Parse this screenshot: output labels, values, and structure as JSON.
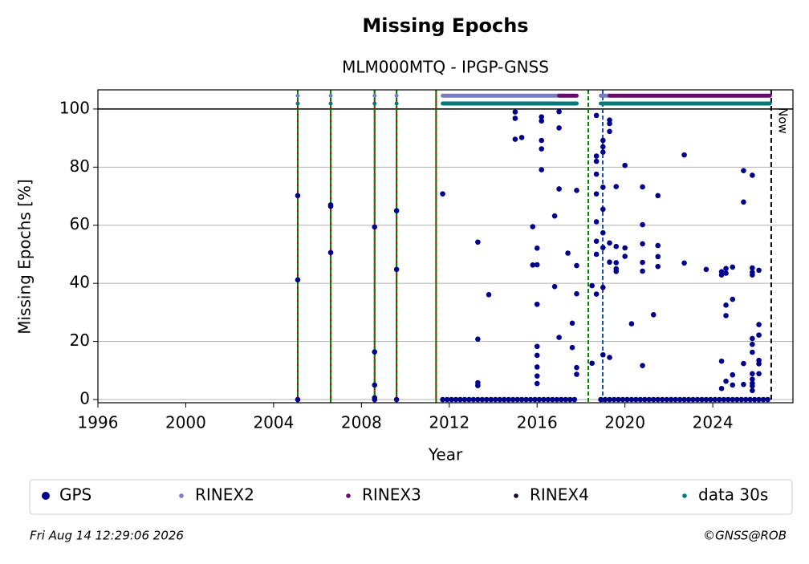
{
  "chart_data": {
    "type": "scatter",
    "title": "Missing Epochs",
    "subtitle": "MLM000MTQ - IPGP-GNSS",
    "x_label": "Year",
    "y_label": "Missing Epochs [%]",
    "xlim": [
      1996,
      2027.65
    ],
    "ylim": [
      -1.1,
      106.6
    ],
    "xticks": [
      1996,
      2000,
      2004,
      2008,
      2012,
      2016,
      2020,
      2024
    ],
    "yticks": [
      0,
      20,
      40,
      60,
      80,
      100
    ],
    "grid": true,
    "limit_line": 100,
    "series": [
      {
        "name": "GPS",
        "color": "#00008b",
        "x": [
          2005.1,
          2005.1,
          2005.1,
          2006.6,
          2006.6,
          2006.6,
          2008.6,
          2008.6,
          2008.6,
          2008.6,
          2008.6,
          2009.6,
          2009.6,
          2009.6,
          2011.7,
          2013.3,
          2013.3,
          2013.3,
          2013.3,
          2013.8,
          2015.0,
          2015.0,
          2015.0,
          2015.3,
          2015.8,
          2015.8,
          2016.0,
          2016.0,
          2016.0,
          2016.0,
          2016.0,
          2016.0,
          2016.0,
          2016.0,
          2016.2,
          2016.2,
          2016.2,
          2016.2,
          2016.2,
          2016.8,
          2016.8,
          2017.0,
          2017.0,
          2017.0,
          2017.0,
          2017.4,
          2017.6,
          2017.6,
          2017.8,
          2017.8,
          2017.8,
          2017.8,
          2017.8,
          2018.5,
          2018.5,
          2018.7,
          2018.7,
          2018.7,
          2018.7,
          2018.7,
          2018.7,
          2018.7,
          2018.7,
          2018.7,
          2019.0,
          2019.0,
          2019.0,
          2019.0,
          2019.0,
          2019.0,
          2019.0,
          2019.0,
          2019.0,
          2019.3,
          2019.3,
          2019.3,
          2019.3,
          2019.3,
          2019.3,
          2019.6,
          2019.6,
          2019.6,
          2019.6,
          2019.6,
          2020.0,
          2020.0,
          2020.0,
          2020.3,
          2020.8,
          2020.8,
          2020.8,
          2020.8,
          2020.8,
          2020.8,
          2021.3,
          2021.5,
          2021.5,
          2021.5,
          2021.5,
          2022.7,
          2022.7,
          2023.7,
          2024.4,
          2024.4,
          2024.4,
          2024.4,
          2024.6,
          2024.6,
          2024.6,
          2024.6,
          2024.6,
          2024.9,
          2024.9,
          2024.9,
          2024.9,
          2025.4,
          2025.4,
          2025.4,
          2025.4,
          2025.8,
          2025.8,
          2025.8,
          2025.8,
          2025.8,
          2025.8,
          2025.8,
          2025.8,
          2025.8,
          2025.8,
          2025.8,
          2025.8,
          2026.1,
          2026.1,
          2026.1,
          2026.1,
          2026.1,
          2026.1,
          2011.7,
          2011.9,
          2012.1,
          2012.3,
          2012.5,
          2012.7,
          2012.9,
          2013.1,
          2013.3,
          2013.5,
          2013.7,
          2013.9,
          2014.1,
          2014.3,
          2014.5,
          2014.7,
          2014.9,
          2015.1,
          2015.3,
          2015.5,
          2015.7,
          2015.9,
          2016.1,
          2016.3,
          2016.5,
          2016.7,
          2016.9,
          2017.1,
          2017.3,
          2017.5,
          2017.7,
          2018.9,
          2019.1,
          2019.3,
          2019.5,
          2019.7,
          2019.9,
          2020.1,
          2020.3,
          2020.5,
          2020.7,
          2020.9,
          2021.1,
          2021.3,
          2021.5,
          2021.7,
          2021.9,
          2022.1,
          2022.3,
          2022.5,
          2022.7,
          2022.9,
          2023.1,
          2023.3,
          2023.5,
          2023.7,
          2023.9,
          2024.1,
          2024.3,
          2024.5,
          2024.7,
          2024.9,
          2025.1,
          2025.3,
          2025.5,
          2025.7,
          2025.9,
          2026.1,
          2026.3,
          2026.5
        ],
        "values": [
          70.2,
          41.2,
          0,
          67,
          66.5,
          50.6,
          59.4,
          16.4,
          5,
          0.6,
          0,
          65,
          44.8,
          0,
          70.8,
          54.2,
          20.8,
          5.8,
          4.8,
          36.1,
          99,
          96.8,
          89.6,
          90.2,
          59.5,
          46.3,
          46.4,
          52.1,
          32.8,
          18.3,
          15.2,
          11.2,
          8.1,
          5.5,
          97.3,
          95.9,
          89.2,
          86.3,
          79.1,
          63.2,
          38.9,
          99.1,
          93.5,
          72.5,
          21.4,
          50.4,
          26.3,
          17.9,
          72,
          46.1,
          36.4,
          11,
          8.7,
          39.2,
          12.5,
          97.8,
          83.8,
          82,
          77.6,
          70.8,
          61.2,
          54.5,
          50,
          36.3,
          89.2,
          87,
          85.2,
          73.1,
          65.5,
          57.4,
          52.3,
          38.6,
          15.4,
          96.2,
          95,
          92.3,
          53.9,
          47.3,
          14.5,
          73.3,
          52.7,
          47.1,
          45,
          44.1,
          80.6,
          52.2,
          49.3,
          26.1,
          73.2,
          60.2,
          53.6,
          47.2,
          44.2,
          11.7,
          29.2,
          70.2,
          53,
          49.2,
          45.8,
          84.2,
          47,
          44.8,
          44,
          42.9,
          13.2,
          3.8,
          45.1,
          43.5,
          32.5,
          28.9,
          6.3,
          45.6,
          34.5,
          8.5,
          5,
          78.8,
          68,
          12.4,
          5.2,
          77.2,
          45.3,
          43.8,
          42.9,
          21,
          19,
          16.3,
          8.9,
          7,
          5.6,
          4.7,
          3.1,
          44.5,
          25.8,
          22.2,
          13.5,
          12.3,
          8.9,
          0,
          0,
          0,
          0,
          0,
          0,
          0,
          0,
          0,
          0,
          0,
          0,
          0,
          0,
          0,
          0,
          0,
          0,
          0,
          0,
          0,
          0,
          0,
          0,
          0,
          0,
          0,
          0,
          0,
          0,
          0,
          0,
          0,
          0,
          0,
          0,
          0,
          0,
          0,
          0,
          0,
          0,
          0,
          0,
          0,
          0,
          0,
          0,
          0,
          0,
          0,
          0,
          0,
          0,
          0,
          0,
          0,
          0,
          0,
          0,
          0,
          0,
          0,
          0,
          0,
          0,
          0,
          0,
          0,
          0
        ]
      }
    ],
    "bands": [
      {
        "name": "RINEX2",
        "color": "#7b7bbf",
        "level": 104.6,
        "segments": [
          [
            2005.1,
            2005.1
          ],
          [
            2006.6,
            2006.6
          ],
          [
            2008.6,
            2008.6
          ],
          [
            2009.6,
            2009.6
          ],
          [
            2011.7,
            2017.0
          ],
          [
            2018.9,
            2019.3
          ]
        ]
      },
      {
        "name": "RINEX3",
        "color": "#6a0a6a",
        "level": 104.6,
        "segments": [
          [
            2017.0,
            2017.8
          ],
          [
            2019.3,
            2026.6
          ]
        ]
      },
      {
        "name": "RINEX4",
        "color": "#1a0020",
        "level": 104.6,
        "segments": []
      },
      {
        "name": "data 30s",
        "color": "#007a7a",
        "level": 101.9,
        "segments": [
          [
            2005.1,
            2005.1
          ],
          [
            2006.6,
            2006.6
          ],
          [
            2008.6,
            2008.6
          ],
          [
            2009.6,
            2009.6
          ],
          [
            2011.7,
            2017.8
          ],
          [
            2018.9,
            2026.6
          ]
        ]
      }
    ],
    "vlines": [
      {
        "x": 2005.1,
        "color": "#008000",
        "under_color": "#cc0000"
      },
      {
        "x": 2006.6,
        "color": "#008000",
        "under_color": "#cc0000"
      },
      {
        "x": 2008.6,
        "color": "#008000",
        "under_color": "#cc0000"
      },
      {
        "x": 2009.6,
        "color": "#008000",
        "under_color": "#cc0000"
      },
      {
        "x": 2011.4,
        "color": "#008000",
        "under_color": "#cc0000"
      },
      {
        "x": 2018.33,
        "color": "#008000"
      },
      {
        "x": 2018.99,
        "color": "#1f4e9c"
      }
    ],
    "now": {
      "x": 2026.66,
      "label": "Now"
    },
    "footer_left": "Fri Aug 14 12:29:06 2026",
    "footer_right": "©GNSS@ROB"
  }
}
